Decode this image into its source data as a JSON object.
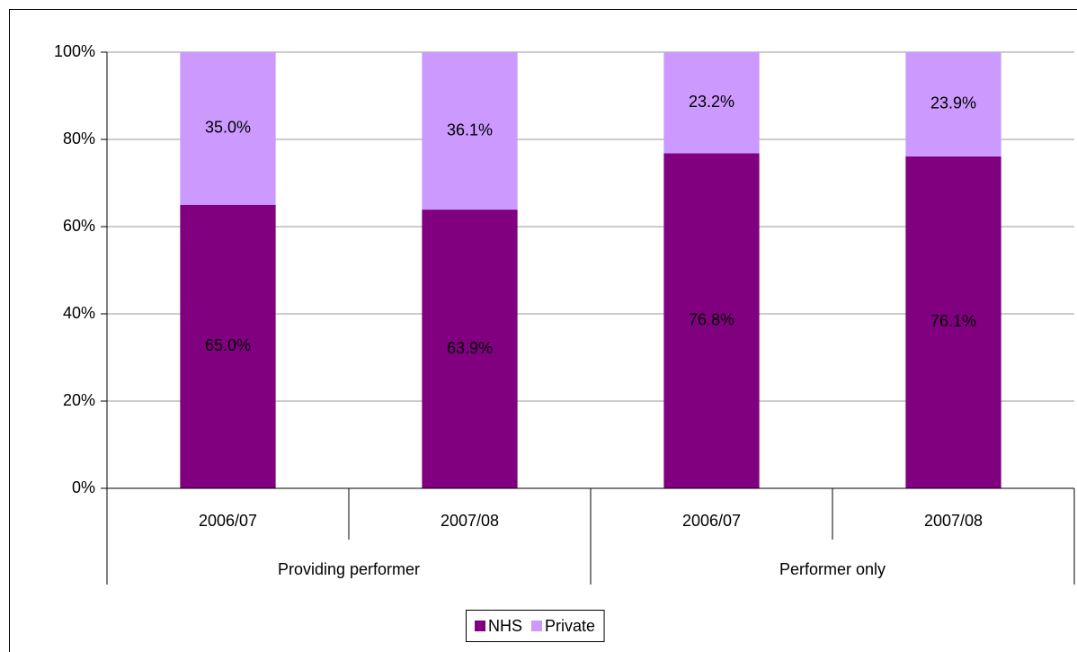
{
  "chart_data": {
    "type": "stacked_bar",
    "categories": [
      "2006/07",
      "2007/08",
      "2006/07",
      "2007/08"
    ],
    "groups": [
      "Providing performer",
      "Performer only"
    ],
    "series": [
      {
        "name": "NHS",
        "color": "#800080",
        "values": [
          65.0,
          63.9,
          76.8,
          76.1
        ],
        "value_labels": [
          "65.0%",
          "63.9%",
          "76.8%",
          "76.1%"
        ]
      },
      {
        "name": "Private",
        "color": "#cc99ff",
        "values": [
          35.0,
          36.1,
          23.2,
          23.9
        ],
        "value_labels": [
          "35.0%",
          "36.1%",
          "23.2%",
          "23.9%"
        ]
      }
    ],
    "ylim": [
      0,
      100
    ],
    "yticks": [
      {
        "value": 0,
        "label": "0%"
      },
      {
        "value": 20,
        "label": "20%"
      },
      {
        "value": 40,
        "label": "40%"
      },
      {
        "value": 60,
        "label": "60%"
      },
      {
        "value": 80,
        "label": "80%"
      },
      {
        "value": 100,
        "label": "100%"
      }
    ],
    "grid": true,
    "legend": "bottom"
  }
}
